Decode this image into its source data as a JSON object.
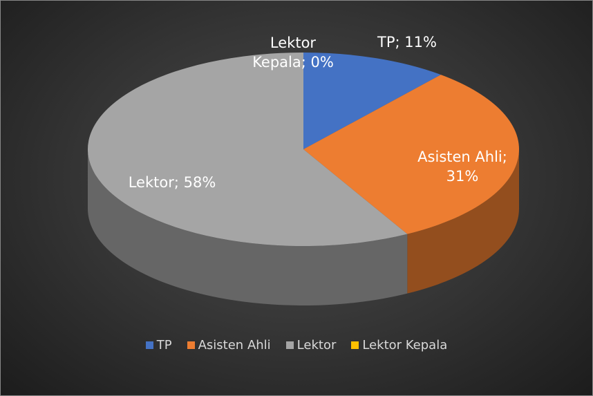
{
  "chart_data": {
    "type": "pie3d",
    "categories": [
      "TP",
      "Asisten Ahli",
      "Lektor",
      "Lektor Kepala"
    ],
    "values": [
      11,
      31,
      58,
      0
    ],
    "value_labels": [
      "TP; 11%",
      "Asisten Ahli; 31%",
      "Lektor; 58%",
      "Lektor Kepala; 0%"
    ],
    "colors": [
      "#4472c4",
      "#ed7d31",
      "#a5a5a5",
      "#ffc000"
    ],
    "legend": "bottom"
  }
}
